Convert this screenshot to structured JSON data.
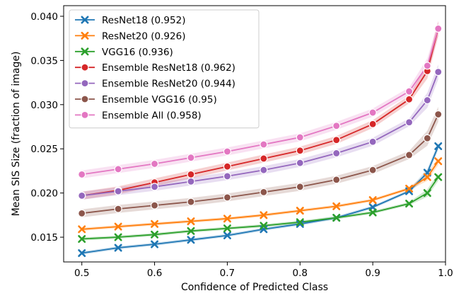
{
  "chart_data": {
    "type": "line",
    "title": "",
    "xlabel": "Confidence of Predicted Class",
    "ylabel": "Mean SIS Size (fraction of image)",
    "xlim": [
      0.475,
      1.0
    ],
    "ylim": [
      0.0122,
      0.0412
    ],
    "xticks": [
      0.5,
      0.6,
      0.7,
      0.8,
      0.9,
      1.0
    ],
    "xtick_labels": [
      "0.5",
      "0.6",
      "0.7",
      "0.8",
      "0.9",
      "1.0"
    ],
    "yticks": [
      0.015,
      0.02,
      0.025,
      0.03,
      0.035,
      0.04
    ],
    "ytick_labels": [
      "0.015",
      "0.020",
      "0.025",
      "0.030",
      "0.035",
      "0.040"
    ],
    "grid": false,
    "legend_position": "top-left",
    "x": [
      0.5,
      0.55,
      0.6,
      0.65,
      0.7,
      0.75,
      0.8,
      0.85,
      0.9,
      0.95,
      0.975,
      0.99
    ],
    "series": [
      {
        "name": "ResNet18 (0.952)",
        "color": "#1f77b4",
        "marker": "x",
        "values": [
          0.0132,
          0.0138,
          0.0142,
          0.0147,
          0.0152,
          0.0159,
          0.0165,
          0.0172,
          0.0184,
          0.0202,
          0.0223,
          0.0253
        ]
      },
      {
        "name": "ResNet20 (0.926)",
        "color": "#ff7f0e",
        "marker": "x",
        "values": [
          0.0159,
          0.0162,
          0.0165,
          0.0168,
          0.0171,
          0.0175,
          0.018,
          0.0185,
          0.0192,
          0.0205,
          0.0218,
          0.0236
        ]
      },
      {
        "name": "VGG16 (0.936)",
        "color": "#2ca02c",
        "marker": "x",
        "values": [
          0.0148,
          0.015,
          0.0153,
          0.0157,
          0.016,
          0.0163,
          0.0167,
          0.0172,
          0.0178,
          0.0188,
          0.02,
          0.0218
        ]
      },
      {
        "name": "Ensemble ResNet18 (0.962)",
        "color": "#d62728",
        "marker": "o",
        "values": [
          0.0197,
          0.0203,
          0.0212,
          0.0221,
          0.023,
          0.0239,
          0.0248,
          0.026,
          0.0278,
          0.0306,
          0.0338,
          0.0386
        ]
      },
      {
        "name": "Ensemble ResNet20 (0.944)",
        "color": "#9467bd",
        "marker": "o",
        "values": [
          0.0197,
          0.0202,
          0.0207,
          0.0213,
          0.0219,
          0.0226,
          0.0234,
          0.0245,
          0.0258,
          0.028,
          0.0305,
          0.0337
        ]
      },
      {
        "name": "Ensemble VGG16 (0.95)",
        "color": "#8c564b",
        "marker": "o",
        "values": [
          0.0177,
          0.0182,
          0.0186,
          0.019,
          0.0195,
          0.0201,
          0.0207,
          0.0215,
          0.0226,
          0.0243,
          0.0262,
          0.0289
        ]
      },
      {
        "name": "Ensemble All (0.958)",
        "color": "#e377c2",
        "marker": "o",
        "values": [
          0.0221,
          0.0227,
          0.0233,
          0.024,
          0.0247,
          0.0255,
          0.0263,
          0.0276,
          0.0291,
          0.0315,
          0.0344,
          0.0386
        ]
      }
    ]
  }
}
